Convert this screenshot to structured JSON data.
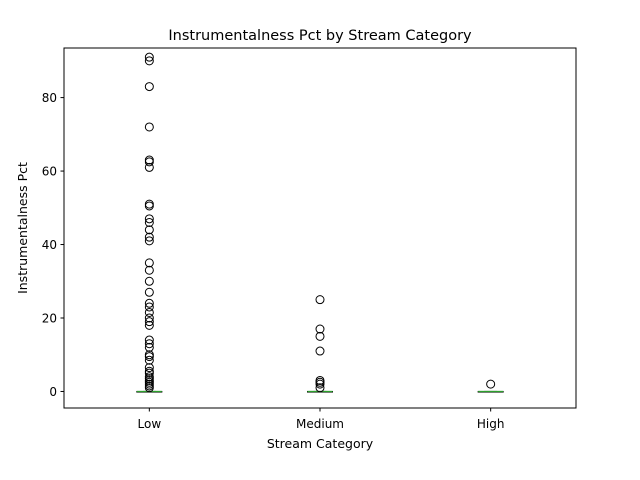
{
  "chart_data": {
    "type": "box",
    "title": "Instrumentalness Pct by Stream Category",
    "xlabel": "Stream Category",
    "ylabel": "Instrumentalness Pct",
    "ylim": [
      -4.5,
      93.5
    ],
    "yticks": [
      0,
      20,
      40,
      60,
      80
    ],
    "grid": false,
    "categories": [
      "Low",
      "Medium",
      "High"
    ],
    "boxes": [
      {
        "category": "Low",
        "q1": 0,
        "median": 0,
        "q3": 0,
        "whisker_low": 0,
        "whisker_high": 0,
        "outliers": [
          91,
          90,
          83,
          72,
          63,
          62.5,
          61,
          51,
          50.5,
          47,
          46,
          44,
          42,
          41,
          35,
          33,
          30,
          27,
          24,
          23,
          21.5,
          20,
          19,
          18,
          14,
          13,
          12,
          10,
          9.5,
          8.5,
          6.5,
          5.5,
          5,
          4,
          3.5,
          3,
          2.5,
          2,
          1.5,
          1
        ]
      },
      {
        "category": "Medium",
        "q1": 0,
        "median": 0,
        "q3": 0,
        "whisker_low": 0,
        "whisker_high": 0,
        "outliers": [
          25,
          17,
          15,
          11,
          3,
          2.5,
          2,
          1
        ]
      },
      {
        "category": "High",
        "q1": 0,
        "median": 0,
        "q3": 0,
        "whisker_low": 0,
        "whisker_high": 0,
        "outliers": [
          2
        ]
      }
    ],
    "colors": {
      "median": "#2ca02c",
      "box": "#000000",
      "outlier": "#000000"
    }
  }
}
